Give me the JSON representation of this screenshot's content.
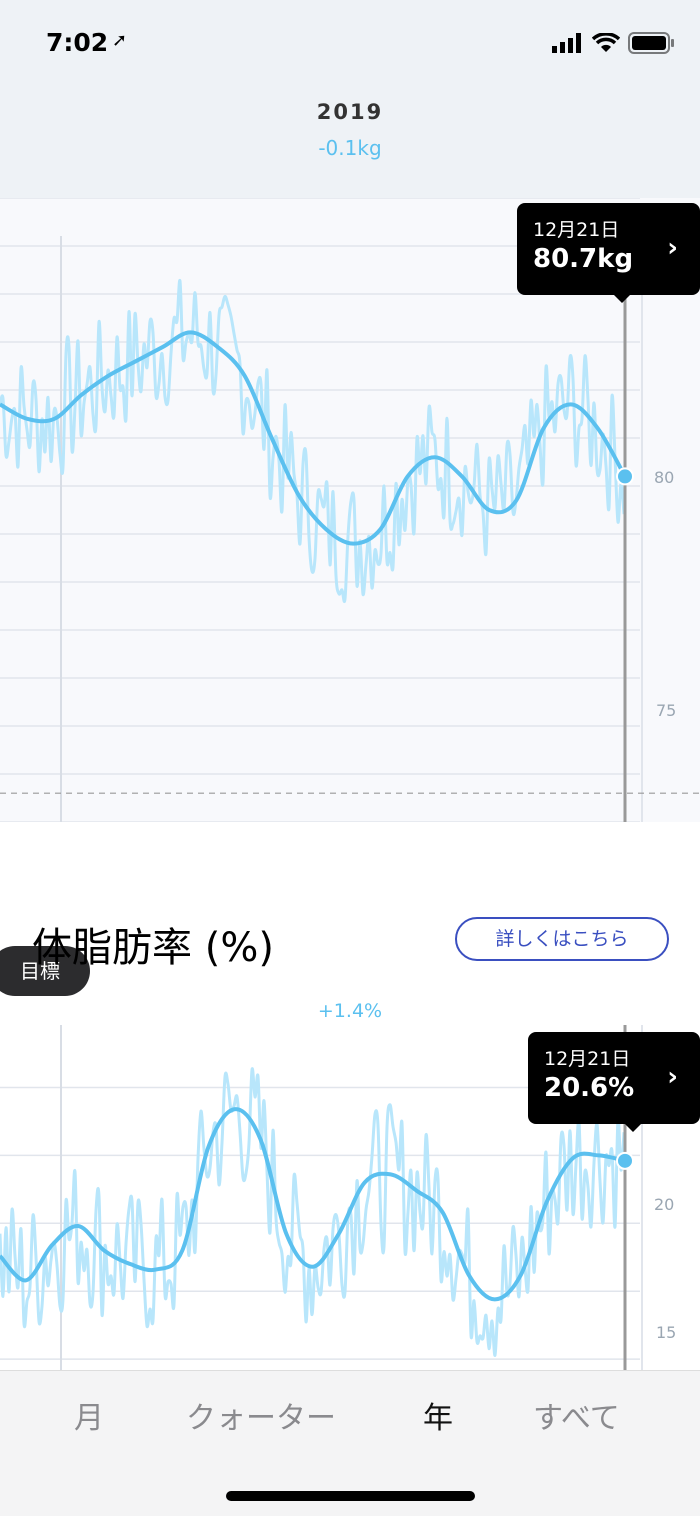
{
  "status_bar": {
    "time": "7:02",
    "icons": [
      "location-arrow-icon",
      "signal-icon",
      "wifi-icon",
      "battery-icon"
    ]
  },
  "header": {
    "year": "2019",
    "delta": "-0.1kg"
  },
  "weight_chart": {
    "tooltip": {
      "date": "12月21日",
      "value": "80.7kg"
    },
    "goal_label": "目標",
    "y_ticks": [
      "80",
      "75"
    ]
  },
  "body_fat": {
    "title": "体脂肪率 (%)",
    "more_button": "詳しくはこちら",
    "delta": "+1.4%",
    "tooltip": {
      "date": "12月21日",
      "value": "20.6%"
    },
    "y_ticks": [
      "20",
      "15"
    ]
  },
  "tabs": [
    {
      "label": "月"
    },
    {
      "label": "クォーター"
    },
    {
      "label": "年",
      "active": true
    },
    {
      "label": "すべて"
    }
  ],
  "colors": {
    "trend": "#5bc0ef",
    "raw": "#b8e6fb",
    "accent": "#3a4fc0"
  },
  "chart_data": [
    {
      "type": "line",
      "ylim": [
        73,
        86
      ],
      "y_ticks": [
        80,
        75
      ],
      "goal": 73.6,
      "grid": true,
      "series": [
        {
          "values": [
            81.7,
            81.4,
            81.4,
            81.9,
            82.3,
            82.6,
            82.9,
            83.2,
            82.9,
            82.3,
            81.0,
            79.8,
            79.1,
            78.8,
            79.1,
            80.2,
            80.6,
            80.2,
            79.5,
            79.7,
            81.2,
            81.7,
            81.2,
            80.2
          ]
        }
      ]
    },
    {
      "type": "line",
      "ylim": [
        13.6,
        26.3
      ],
      "y_ticks": [
        20,
        15
      ],
      "grid": true,
      "series": [
        {
          "values": [
            17.8,
            16.9,
            18.2,
            18.9,
            18.0,
            17.5,
            17.3,
            18.0,
            21.8,
            23.2,
            22.1,
            18.6,
            17.4,
            18.6,
            20.5,
            20.8,
            20.2,
            19.4,
            17.1,
            16.2,
            17.1,
            19.8,
            21.4,
            21.5,
            21.3
          ]
        }
      ]
    }
  ]
}
